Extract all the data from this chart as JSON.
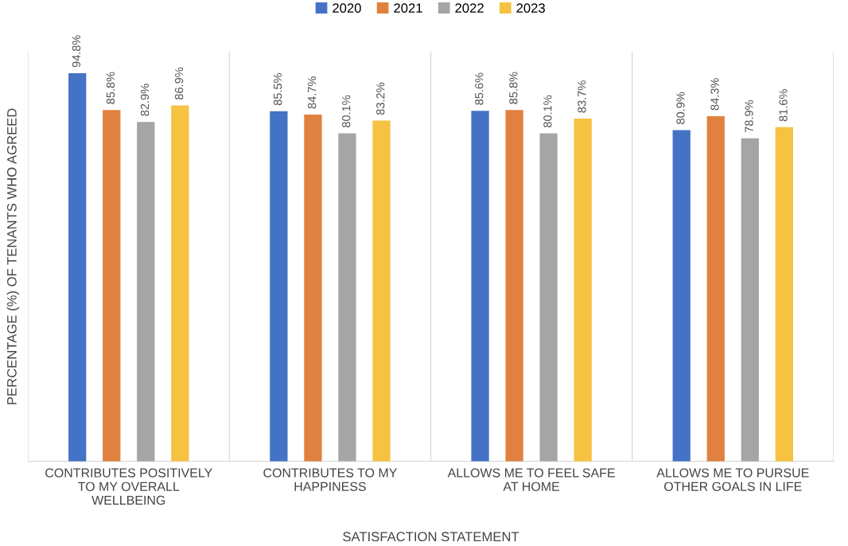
{
  "chart_data": {
    "type": "bar",
    "xlabel": "SATISFACTION STATEMENT",
    "ylabel": "PERCENTAGE (%) OF TENANTS WHO AGREED",
    "categories": [
      "CONTRIBUTES POSITIVELY\nTO MY OVERALL\nWELLBEING",
      "CONTRIBUTES TO MY\nHAPPINESS",
      "ALLOWS ME TO FEEL SAFE\nAT HOME",
      "ALLOWS ME TO PURSUE\nOTHER GOALS IN LIFE"
    ],
    "series": [
      {
        "name": "2020",
        "color": "#4472c4",
        "values": [
          94.8,
          85.5,
          85.6,
          80.9
        ],
        "value_labels": [
          "94.8%",
          "85.5%",
          "85.6%",
          "80.9%"
        ]
      },
      {
        "name": "2021",
        "color": "#e0813f",
        "values": [
          85.8,
          84.7,
          85.8,
          84.3
        ],
        "value_labels": [
          "85.8%",
          "84.7%",
          "85.8%",
          "84.3%"
        ]
      },
      {
        "name": "2022",
        "color": "#a5a5a5",
        "values": [
          82.9,
          80.1,
          80.1,
          78.9
        ],
        "value_labels": [
          "82.9%",
          "80.1%",
          "80.1%",
          "78.9%"
        ]
      },
      {
        "name": "2023",
        "color": "#f5c242",
        "values": [
          86.9,
          83.2,
          83.7,
          81.6
        ],
        "value_labels": [
          "86.9%",
          "83.2%",
          "83.7%",
          "81.6%"
        ]
      }
    ],
    "ylim": [
      0,
      100
    ],
    "grid": "x",
    "legend": "top",
    "tick_labels": "x"
  }
}
